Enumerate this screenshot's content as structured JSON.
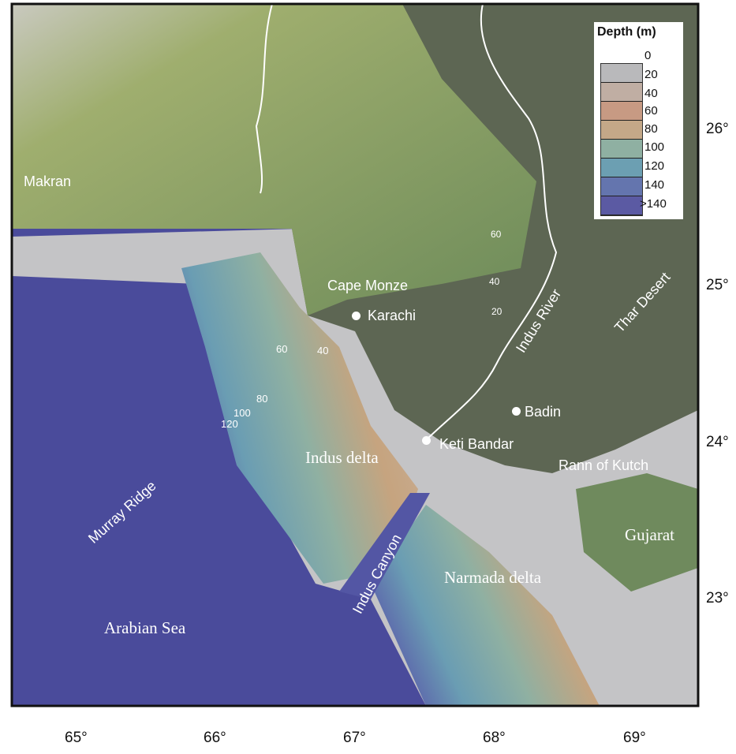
{
  "legend": {
    "title": "Depth (m)",
    "levels": [
      "0",
      "20",
      "40",
      "60",
      "80",
      "100",
      "120",
      "140",
      ">140"
    ],
    "colors": [
      "#b9b9bb",
      "#c0aea3",
      "#c79a83",
      "#c4a888",
      "#8fb0a2",
      "#6c9fb2",
      "#6475ae",
      "#5b5aa3"
    ]
  },
  "colors": {
    "land": "#5d6653",
    "mountains": "#8fa46a",
    "shelf": "#c4c4c6",
    "deep_sea": "#4a4b9b",
    "river": "#ffffff"
  },
  "labels": {
    "makran": "Makran",
    "cape_monze": "Cape Monze",
    "karachi": "Karachi",
    "indus_river": "Indus River",
    "thar_desert": "Thar Desert",
    "badin": "Badin",
    "keti_bandar": "Keti Bandar",
    "rann_of_kutch": "Rann of Kutch",
    "gujarat": "Gujarat",
    "indus_delta": "Indus delta",
    "narmada_delta": "Narmada delta",
    "indus_canyon": "Indus Canyon",
    "murray_ridge": "Murray Ridge",
    "arabian_sea": "Arabian Sea"
  },
  "contour_labels": [
    "60",
    "40",
    "20",
    "60",
    "40",
    "80",
    "100",
    "120"
  ],
  "axes": {
    "longitude_ticks": [
      "65°",
      "66°",
      "67°",
      "68°",
      "69°"
    ],
    "latitude_ticks": [
      "26°",
      "25°",
      "24°",
      "23°"
    ]
  }
}
